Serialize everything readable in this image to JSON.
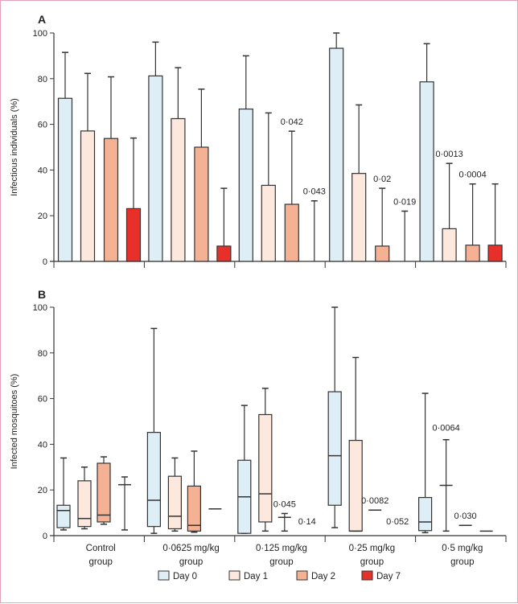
{
  "legend": [
    {
      "label": "Day 0",
      "color": "#ddeef6"
    },
    {
      "label": "Day 1",
      "color": "#fde8dd"
    },
    {
      "label": "Day 2",
      "color": "#f5b194"
    },
    {
      "label": "Day 7",
      "color": "#e8302a"
    }
  ],
  "groups": [
    "Control group",
    "0·0625 mg/kg group",
    "0·125 mg/kg group",
    "0·25 mg/kg group",
    "0·5 mg/kg group"
  ],
  "group_lines": [
    [
      "Control",
      "group"
    ],
    [
      "0·0625 mg/kg",
      "group"
    ],
    [
      "0·125 mg/kg",
      "group"
    ],
    [
      "0·25 mg/kg",
      "group"
    ],
    [
      "0·5 mg/kg",
      "group"
    ]
  ],
  "chart_data": [
    {
      "panel": "A",
      "type": "bar",
      "ylabel": "Infectious individuals (%)",
      "ylim": [
        0,
        100
      ],
      "yticks": [
        0,
        20,
        40,
        60,
        80,
        100
      ],
      "series_names": [
        "Day 0",
        "Day 1",
        "Day 2",
        "Day 7"
      ],
      "values": [
        [
          71.4,
          57.1,
          53.8,
          23.1
        ],
        [
          81.2,
          62.5,
          50.0,
          6.7
        ],
        [
          66.7,
          33.3,
          25.0,
          0
        ],
        [
          93.3,
          38.5,
          6.7,
          0
        ],
        [
          78.6,
          14.3,
          7.1,
          7.1
        ]
      ],
      "error_upper": [
        [
          91.5,
          82.3,
          80.8,
          54.0
        ],
        [
          96.0,
          84.8,
          75.4,
          32.0
        ],
        [
          90.0,
          65.0,
          57.0,
          26.5
        ],
        [
          100,
          68.5,
          32.0,
          22.0
        ],
        [
          95.3,
          42.9,
          33.9,
          33.9
        ]
      ],
      "p_values": [
        [
          null,
          null,
          null,
          null
        ],
        [
          null,
          null,
          null,
          null
        ],
        [
          null,
          null,
          "0·042",
          "0·043"
        ],
        [
          null,
          null,
          "0·02",
          "0·019"
        ],
        [
          null,
          "0·0013",
          "0·0004",
          null
        ]
      ]
    },
    {
      "panel": "B",
      "type": "box",
      "ylabel": "Infected mosquitoes (%)",
      "ylim": [
        0,
        100
      ],
      "yticks": [
        0,
        20,
        40,
        60,
        80,
        100
      ],
      "series_names": [
        "Day 0",
        "Day 1",
        "Day 2",
        "Day 7"
      ],
      "boxes": [
        [
          {
            "min": 2.5,
            "q1": 3.5,
            "median": 11,
            "q3": 13.3,
            "max": 34
          },
          {
            "min": 3,
            "q1": 4,
            "median": 7.5,
            "q3": 24,
            "max": 30
          },
          {
            "min": 5,
            "q1": 6,
            "median": 9,
            "q3": 31.7,
            "max": 34.5
          },
          {
            "min": 2.5,
            "median": 22.3,
            "max": 25.7
          }
        ],
        [
          {
            "min": 1,
            "q1": 4,
            "median": 15.5,
            "q3": 45.2,
            "max": 90.7
          },
          {
            "min": 2,
            "q1": 3,
            "median": 8.5,
            "q3": 26,
            "max": 34
          },
          {
            "min": 1.5,
            "q1": 2,
            "median": 4.5,
            "q3": 21.7,
            "max": 37
          },
          {
            "median": 11.7
          }
        ],
        [
          {
            "min": 1,
            "q1": 1,
            "median": 17,
            "q3": 33,
            "max": 57
          },
          {
            "min": 2,
            "q1": 6,
            "median": 18.3,
            "q3": 53,
            "max": 64.5
          },
          {
            "min": 2,
            "median": 8,
            "max": 9.7
          },
          null
        ],
        [
          {
            "min": 3.5,
            "q1": 13.3,
            "median": 35,
            "q3": 63,
            "max": 100
          },
          {
            "min": 2,
            "q1": 2,
            "median": 2,
            "q3": 41.7,
            "max": 78
          },
          {
            "median": 11.2
          },
          null
        ],
        [
          {
            "min": 1.3,
            "q1": 2.2,
            "median": 6,
            "q3": 16.7,
            "max": 62.3
          },
          {
            "min": 2,
            "median": 22,
            "max": 42
          },
          {
            "median": 4.5
          },
          {
            "median": 2
          }
        ]
      ],
      "p_values": [
        [
          null,
          null,
          null,
          null
        ],
        [
          null,
          null,
          null,
          null
        ],
        [
          null,
          null,
          "0·045",
          "0·14"
        ],
        [
          null,
          null,
          "0·0082",
          "0·052"
        ],
        [
          null,
          "0·0064",
          "0·030",
          null
        ]
      ]
    }
  ]
}
